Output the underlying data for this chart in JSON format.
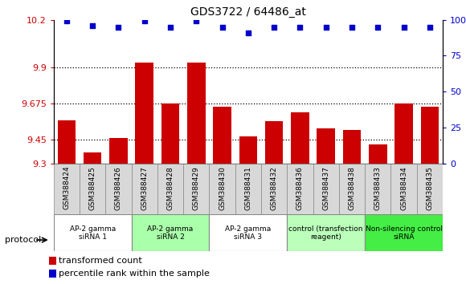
{
  "title": "GDS3722 / 64486_at",
  "samples": [
    "GSM388424",
    "GSM388425",
    "GSM388426",
    "GSM388427",
    "GSM388428",
    "GSM388429",
    "GSM388430",
    "GSM388431",
    "GSM388432",
    "GSM388436",
    "GSM388437",
    "GSM388438",
    "GSM388433",
    "GSM388434",
    "GSM388435"
  ],
  "bar_values": [
    9.57,
    9.37,
    9.46,
    9.93,
    9.675,
    9.93,
    9.655,
    9.47,
    9.565,
    9.62,
    9.52,
    9.51,
    9.42,
    9.675,
    9.655
  ],
  "dot_values": [
    99.5,
    96,
    95,
    99.5,
    95,
    99.5,
    95,
    91,
    95,
    95,
    95,
    95,
    95,
    95,
    95
  ],
  "bar_color": "#cc0000",
  "dot_color": "#0000cc",
  "ylim_left": [
    9.3,
    10.2
  ],
  "ylim_right": [
    0,
    100
  ],
  "yticks_left": [
    9.3,
    9.45,
    9.675,
    9.9,
    10.2
  ],
  "ytick_labels_left": [
    "9.3",
    "9.45",
    "9.675",
    "9.9",
    "10.2"
  ],
  "yticks_right": [
    0,
    25,
    50,
    75,
    100
  ],
  "ytick_labels_right": [
    "0",
    "25",
    "50",
    "75",
    "100%"
  ],
  "hlines": [
    9.45,
    9.675,
    9.9
  ],
  "groups": [
    {
      "label": "AP-2 gamma\nsiRNA 1",
      "start": 0,
      "end": 3,
      "color": "#ffffff"
    },
    {
      "label": "AP-2 gamma\nsiRNA 2",
      "start": 3,
      "end": 6,
      "color": "#aaffaa"
    },
    {
      "label": "AP-2 gamma\nsiRNA 3",
      "start": 6,
      "end": 9,
      "color": "#ffffff"
    },
    {
      "label": "control (transfection\nreagent)",
      "start": 9,
      "end": 12,
      "color": "#bbffbb"
    },
    {
      "label": "Non-silencing control\nsiRNA",
      "start": 12,
      "end": 15,
      "color": "#44ee44"
    }
  ],
  "protocol_label": "protocol",
  "legend_bar": "transformed count",
  "legend_dot": "percentile rank within the sample",
  "tick_color_left": "#cc0000",
  "tick_color_right": "#0000cc",
  "sample_box_color": "#d8d8d8",
  "bar_bottom": 9.3
}
